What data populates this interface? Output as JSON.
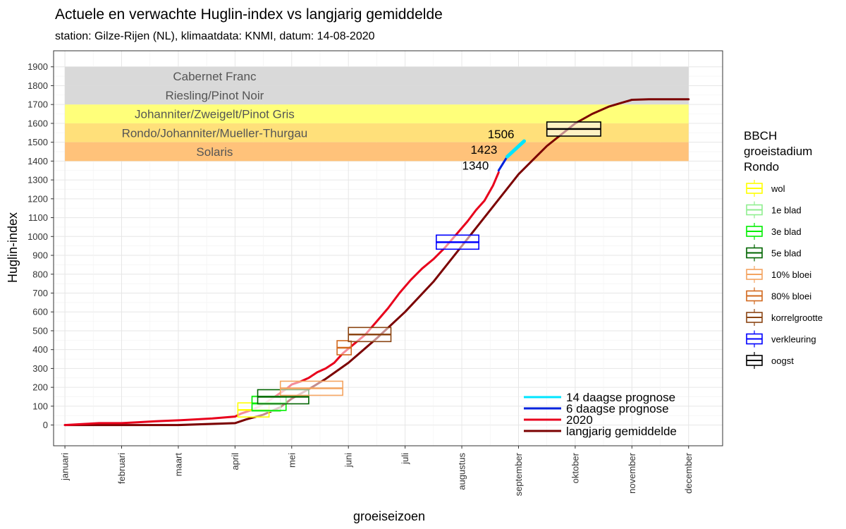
{
  "chart_data": {
    "type": "line",
    "title": "Actuele en verwachte Huglin-index vs langjarig gemiddelde",
    "subtitle": "station: Gilze-Rijen (NL), klimaatdata: KNMI, datum: 14-08-2020",
    "xlabel": "groeiseizoen",
    "ylabel": "Huglin-index",
    "ylim": [
      -110,
      1985
    ],
    "xlim": [
      -0.2,
      11.6
    ],
    "y_ticks": [
      0,
      100,
      200,
      300,
      400,
      500,
      600,
      700,
      800,
      900,
      1000,
      1100,
      1200,
      1300,
      1400,
      1500,
      1600,
      1700,
      1800,
      1900
    ],
    "x_ticks": [
      "januari",
      "februari",
      "maart",
      "april",
      "mei",
      "juni",
      "juli",
      "augustus",
      "september",
      "oktober",
      "november",
      "december"
    ],
    "grid": true,
    "bands": [
      {
        "label": "Cabernet Franc",
        "y0": 1800,
        "y1": 1900,
        "color": "#d9d9d9"
      },
      {
        "label": "Riesling/Pinot Noir",
        "y0": 1700,
        "y1": 1800,
        "color": "#d9d9d9"
      },
      {
        "label": "Johanniter/Zweigelt/Pinot Gris",
        "y0": 1600,
        "y1": 1700,
        "color": "#ffff7a"
      },
      {
        "label": "Rondo/Johanniter/Mueller-Thurgau",
        "y0": 1500,
        "y1": 1600,
        "color": "#ffe07a"
      },
      {
        "label": "Solaris",
        "y0": 1400,
        "y1": 1500,
        "color": "#ffc27a"
      }
    ],
    "series": [
      {
        "name": "langjarig gemiddelde",
        "color": "#7b0000",
        "x": [
          0,
          1,
          2,
          3,
          3.2,
          3.5,
          3.8,
          4.0,
          4.3,
          4.6,
          5.0,
          5.5,
          6.0,
          6.5,
          7.0,
          7.5,
          8.0,
          8.5,
          9.0,
          9.3,
          9.6,
          10.0,
          10.3,
          10.6,
          11.0
        ],
        "y": [
          0,
          0,
          0,
          10,
          30,
          55,
          95,
          140,
          190,
          245,
          330,
          460,
          600,
          760,
          950,
          1140,
          1330,
          1480,
          1600,
          1650,
          1690,
          1725,
          1728,
          1728,
          1728
        ]
      },
      {
        "name": "2020",
        "color": "#e8001c",
        "x": [
          0,
          0.3,
          0.6,
          1,
          1.3,
          1.6,
          2.0,
          2.3,
          2.6,
          3.0,
          3.1,
          3.3,
          3.5,
          3.7,
          3.9,
          4.0,
          4.15,
          4.3,
          4.45,
          4.6,
          4.75,
          4.9,
          5.1,
          5.3,
          5.5,
          5.7,
          5.9,
          6.1,
          6.3,
          6.5,
          6.7,
          6.9,
          7.1,
          7.25,
          7.4,
          7.55,
          7.65
        ],
        "y": [
          0,
          5,
          10,
          10,
          15,
          20,
          25,
          30,
          35,
          45,
          60,
          80,
          110,
          150,
          190,
          215,
          230,
          250,
          280,
          300,
          330,
          380,
          430,
          480,
          550,
          620,
          700,
          770,
          830,
          880,
          940,
          1010,
          1080,
          1140,
          1190,
          1270,
          1340
        ]
      },
      {
        "name": "6 daagse prognose",
        "color": "#0022dd",
        "x": [
          7.65,
          7.8
        ],
        "y": [
          1350,
          1423
        ]
      },
      {
        "name": "14 daagse prognose",
        "color": "#00e5ff",
        "x": [
          7.8,
          8.1
        ],
        "y": [
          1423,
          1506
        ]
      }
    ],
    "point_labels": [
      {
        "text": "1340",
        "x": 7.65,
        "y": 1340
      },
      {
        "text": "1423",
        "x": 7.8,
        "y": 1423
      },
      {
        "text": "1506",
        "x": 8.1,
        "y": 1506
      }
    ],
    "boxes": [
      {
        "name": "wol",
        "color": "#ffff00",
        "xmin": 3.05,
        "q1": 3.05,
        "median": 3.3,
        "q3": 3.6,
        "xmax": 3.6,
        "y": 80
      },
      {
        "name": "1e blad",
        "color": "#90ee90",
        "xmin": 3.3,
        "q1": 3.3,
        "median": 3.5,
        "q3": 3.8,
        "xmax": 3.8,
        "y": 110
      },
      {
        "name": "3e blad",
        "color": "#00ee00",
        "xmin": 3.3,
        "q1": 3.3,
        "median": 3.6,
        "q3": 3.9,
        "xmax": 3.9,
        "y": 115
      },
      {
        "name": "5e blad",
        "color": "#006400",
        "xmin": 3.4,
        "q1": 3.4,
        "median": 3.7,
        "q3": 4.3,
        "xmax": 4.3,
        "y": 150
      },
      {
        "name": "10% bloei",
        "color": "#f4a460",
        "xmin": 3.8,
        "q1": 3.8,
        "median": 4.2,
        "q3": 4.9,
        "xmax": 4.9,
        "y": 195
      },
      {
        "name": "80% bloei",
        "color": "#d2691e",
        "xmin": 4.8,
        "q1": 4.8,
        "median": 4.9,
        "q3": 5.05,
        "xmax": 5.05,
        "y": 410
      },
      {
        "name": "korrelgrootte",
        "color": "#8b4513",
        "xmin": 5.0,
        "q1": 5.0,
        "median": 5.3,
        "q3": 5.75,
        "xmax": 5.75,
        "y": 480
      },
      {
        "name": "verkleuring",
        "color": "#0000ff",
        "xmin": 6.55,
        "q1": 6.55,
        "median": 6.8,
        "q3": 7.3,
        "xmax": 7.3,
        "y": 970
      },
      {
        "name": "oogst",
        "color": "#000000",
        "xmin": 8.5,
        "q1": 8.5,
        "median": 8.9,
        "q3": 9.45,
        "xmax": 9.45,
        "y": 1570
      }
    ],
    "legend_boxes_title": [
      "BBCH",
      "groeistadium",
      "Rondo"
    ],
    "legend_lines_order": [
      "14 daagse prognose",
      "6 daagse prognose",
      "2020",
      "langjarig gemiddelde"
    ]
  }
}
